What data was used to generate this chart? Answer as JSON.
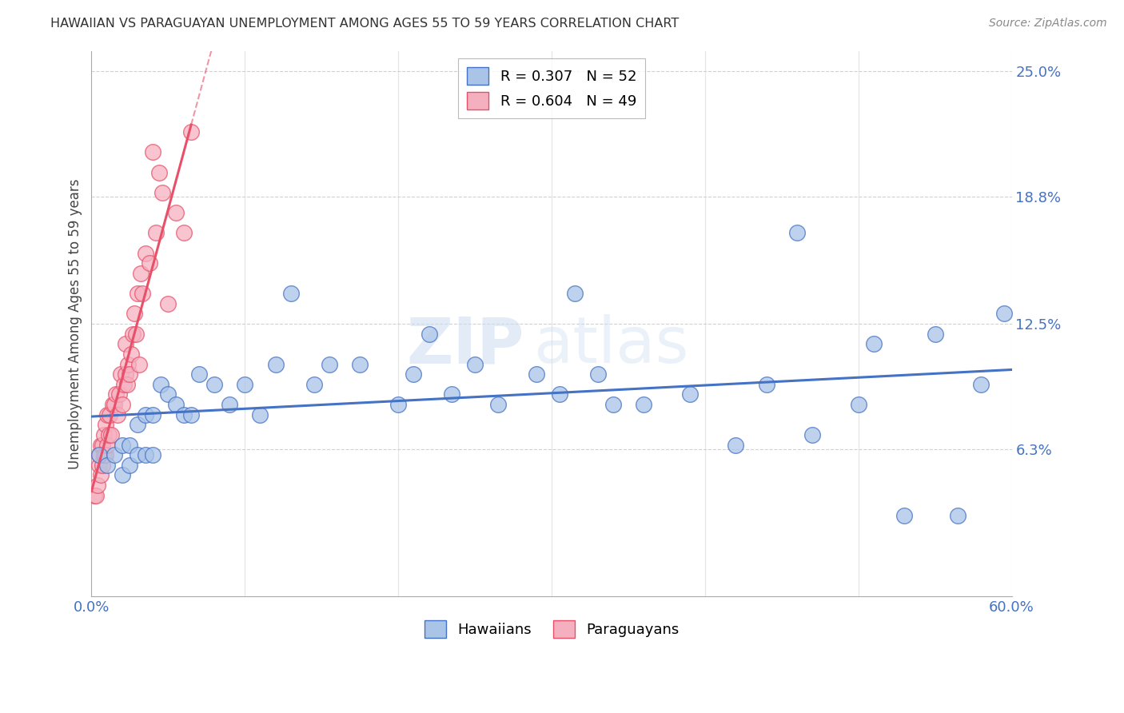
{
  "title": "HAWAIIAN VS PARAGUAYAN UNEMPLOYMENT AMONG AGES 55 TO 59 YEARS CORRELATION CHART",
  "source": "Source: ZipAtlas.com",
  "ylabel": "Unemployment Among Ages 55 to 59 years",
  "xlim": [
    0.0,
    0.6
  ],
  "ylim": [
    -0.01,
    0.26
  ],
  "ytick_values": [
    0.063,
    0.125,
    0.188,
    0.25
  ],
  "ytick_labels": [
    "6.3%",
    "12.5%",
    "18.8%",
    "25.0%"
  ],
  "hawaiian_R": 0.307,
  "hawaiian_N": 52,
  "paraguayan_R": 0.604,
  "paraguayan_N": 49,
  "hawaiian_color": "#aac4e8",
  "paraguayan_color": "#f5b0c0",
  "hawaiian_line_color": "#4472c4",
  "paraguayan_line_color": "#e8506a",
  "hawaiian_x": [
    0.005,
    0.01,
    0.015,
    0.02,
    0.02,
    0.025,
    0.025,
    0.03,
    0.03,
    0.035,
    0.035,
    0.04,
    0.04,
    0.045,
    0.05,
    0.055,
    0.06,
    0.065,
    0.07,
    0.08,
    0.09,
    0.1,
    0.11,
    0.12,
    0.13,
    0.145,
    0.155,
    0.175,
    0.2,
    0.21,
    0.22,
    0.235,
    0.25,
    0.265,
    0.29,
    0.305,
    0.315,
    0.33,
    0.34,
    0.36,
    0.39,
    0.42,
    0.44,
    0.46,
    0.47,
    0.5,
    0.51,
    0.53,
    0.55,
    0.565,
    0.58,
    0.595
  ],
  "hawaiian_y": [
    0.06,
    0.055,
    0.06,
    0.05,
    0.065,
    0.055,
    0.065,
    0.06,
    0.075,
    0.06,
    0.08,
    0.06,
    0.08,
    0.095,
    0.09,
    0.085,
    0.08,
    0.08,
    0.1,
    0.095,
    0.085,
    0.095,
    0.08,
    0.105,
    0.14,
    0.095,
    0.105,
    0.105,
    0.085,
    0.1,
    0.12,
    0.09,
    0.105,
    0.085,
    0.1,
    0.09,
    0.14,
    0.1,
    0.085,
    0.085,
    0.09,
    0.065,
    0.095,
    0.17,
    0.07,
    0.085,
    0.115,
    0.03,
    0.12,
    0.03,
    0.095,
    0.13
  ],
  "paraguayan_x": [
    0.002,
    0.003,
    0.004,
    0.005,
    0.005,
    0.006,
    0.006,
    0.007,
    0.007,
    0.008,
    0.008,
    0.009,
    0.009,
    0.01,
    0.01,
    0.011,
    0.012,
    0.013,
    0.014,
    0.015,
    0.016,
    0.017,
    0.018,
    0.019,
    0.02,
    0.021,
    0.022,
    0.022,
    0.023,
    0.024,
    0.025,
    0.026,
    0.027,
    0.028,
    0.029,
    0.03,
    0.031,
    0.032,
    0.033,
    0.035,
    0.038,
    0.04,
    0.042,
    0.044,
    0.046,
    0.05,
    0.055,
    0.06,
    0.065
  ],
  "paraguayan_y": [
    0.04,
    0.04,
    0.045,
    0.055,
    0.06,
    0.05,
    0.065,
    0.055,
    0.065,
    0.06,
    0.07,
    0.06,
    0.075,
    0.065,
    0.08,
    0.07,
    0.08,
    0.07,
    0.085,
    0.085,
    0.09,
    0.08,
    0.09,
    0.1,
    0.085,
    0.095,
    0.1,
    0.115,
    0.095,
    0.105,
    0.1,
    0.11,
    0.12,
    0.13,
    0.12,
    0.14,
    0.105,
    0.15,
    0.14,
    0.16,
    0.155,
    0.21,
    0.17,
    0.2,
    0.19,
    0.135,
    0.18,
    0.17,
    0.22
  ],
  "watermark_zip": "ZIP",
  "watermark_atlas": "atlas",
  "background_color": "#ffffff",
  "grid_color": "#cccccc"
}
